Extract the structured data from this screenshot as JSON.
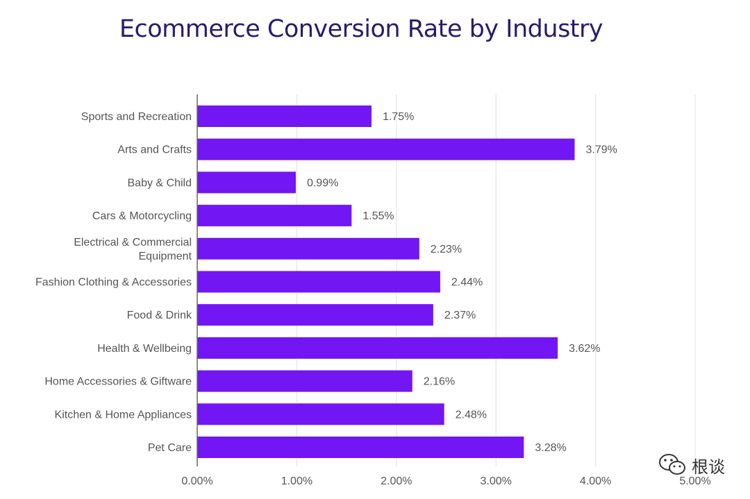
{
  "chart_data": {
    "type": "bar",
    "orientation": "horizontal",
    "title": "Ecommerce Conversion Rate by Industry",
    "xlabel": "",
    "ylabel": "",
    "categories": [
      "Sports and Recreation",
      "Arts and Crafts",
      "Baby & Child",
      "Cars & Motorcycling",
      "Electrical & Commercial Equipment",
      "Fashion Clothing & Accessories",
      "Food & Drink",
      "Health & Wellbeing",
      "Home Accessories & Giftware",
      "Kitchen & Home Appliances",
      "Pet Care"
    ],
    "category_lines": [
      [
        "Sports and Recreation"
      ],
      [
        "Arts and Crafts"
      ],
      [
        "Baby & Child"
      ],
      [
        "Cars & Motorcycling"
      ],
      [
        "Electrical & Commercial",
        "Equipment"
      ],
      [
        "Fashion Clothing & Accessories"
      ],
      [
        "Food & Drink"
      ],
      [
        "Health & Wellbeing"
      ],
      [
        "Home Accessories & Giftware"
      ],
      [
        "Kitchen & Home Appliances"
      ],
      [
        "Pet Care"
      ]
    ],
    "values": [
      1.75,
      3.79,
      0.99,
      1.55,
      2.23,
      2.44,
      2.37,
      3.62,
      2.16,
      2.48,
      3.28
    ],
    "value_labels": [
      "1.75%",
      "3.79%",
      "0.99%",
      "1.55%",
      "2.23%",
      "2.44%",
      "2.37%",
      "3.62%",
      "2.16%",
      "2.48%",
      "3.28%"
    ],
    "xlim": [
      0,
      5
    ],
    "xticks": [
      0,
      1,
      2,
      3,
      4,
      5
    ],
    "xtick_labels": [
      "0.00%",
      "1.00%",
      "2.00%",
      "3.00%",
      "4.00%",
      "5.00%"
    ],
    "grid": true,
    "legend": "none",
    "bar_color": "#7216f4",
    "grid_color": "#e0e0e0",
    "axis_color": "#666666"
  },
  "watermark": {
    "text": "根谈",
    "icon": "wechat-icon"
  }
}
